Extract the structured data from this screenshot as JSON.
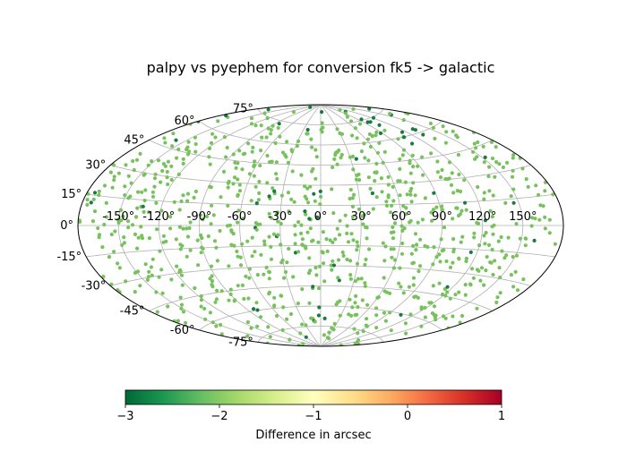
{
  "chart_data": {
    "type": "scatter",
    "projection": "aitoff",
    "title": "palpy vs pyephem for conversion fk5 -> galactic",
    "xlabel": "",
    "ylabel": "",
    "x_ticks": [
      "-150°",
      "-120°",
      "-90°",
      "-60°",
      "-30°",
      "0°",
      "30°",
      "60°",
      "90°",
      "120°",
      "150°"
    ],
    "y_ticks": [
      "-75°",
      "-60°",
      "-45°",
      "-30°",
      "-15°",
      "0°",
      "15°",
      "30°",
      "45°",
      "60°",
      "75°"
    ],
    "grid": true,
    "point_count": 950,
    "value_note": "most points near -2.3 arcsec; darker points (about -3) cluster near lon 0° lat -50°..-75° and lon 90°..130° lat 55°..75°",
    "colormap": "RdYlGn_r",
    "colorbar": {
      "label": "Difference in arcsec",
      "min": -3,
      "max": 1,
      "ticks": [
        "−3",
        "−2",
        "−1",
        "0",
        "1"
      ],
      "tick_values": [
        -3,
        -2,
        -1,
        0,
        1
      ],
      "colors": [
        "#006837",
        "#1a9850",
        "#66bd63",
        "#a6d96a",
        "#d9ef8b",
        "#ffffbf",
        "#fee08b",
        "#fdae61",
        "#f46d43",
        "#d73027",
        "#a50026"
      ]
    },
    "point_colors": {
      "typical": "#78c25e",
      "dark": "#1a7a42"
    }
  }
}
